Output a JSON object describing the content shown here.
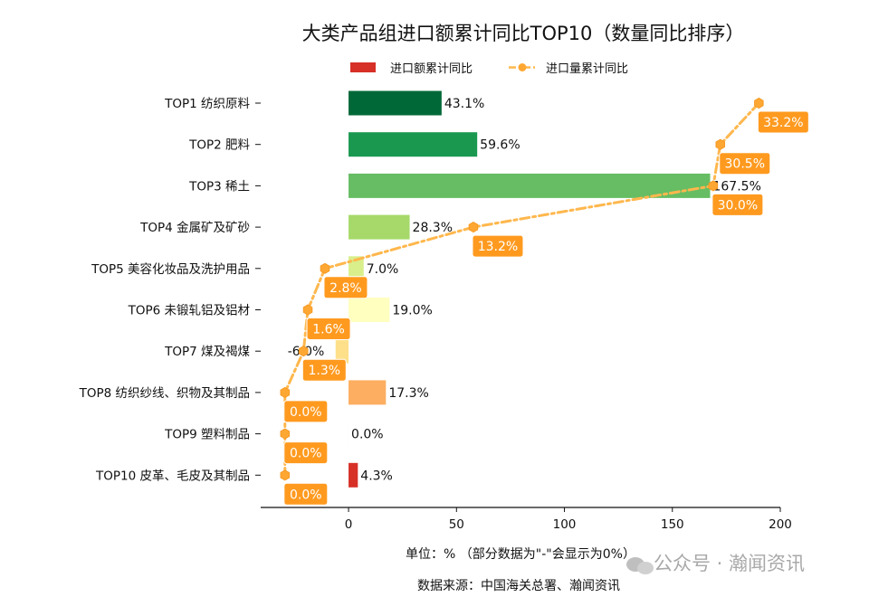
{
  "chart_data": {
    "type": "bar",
    "title": "大类产品组进口额累计同比TOP10（数量同比排序）",
    "categories": [
      "TOP1 纺织原料",
      "TOP2 肥料",
      "TOP3 稀土",
      "TOP4 金属矿及矿砂",
      "TOP5 美容化妆品及洗护用品",
      "TOP6 未锻轧铝及铝材",
      "TOP7 煤及褐煤",
      "TOP8 纺织纱线、织物及其制品",
      "TOP9 塑料制品",
      "TOP10 皮革、毛皮及其制品"
    ],
    "series": [
      {
        "name": "进口额累计同比",
        "type": "bar",
        "values": [
          43.1,
          59.6,
          167.5,
          28.3,
          7.0,
          19.0,
          -6.0,
          17.3,
          0.0,
          4.3
        ],
        "labels": [
          "43.1%",
          "59.6%",
          "167.5%",
          "28.3%",
          "7.0%",
          "19.0%",
          "-6.0%",
          "17.3%",
          "0.0%",
          "4.3%"
        ],
        "colors": [
          "#006837",
          "#1a9850",
          "#66bd63",
          "#a6d96a",
          "#d9ef8b",
          "#ffffbf",
          "#fee08b",
          "#fdae61",
          "#f46d43",
          "#d73027"
        ]
      },
      {
        "name": "进口量累计同比",
        "type": "line",
        "values": [
          33.2,
          30.5,
          30.0,
          13.2,
          2.8,
          1.6,
          1.3,
          0.0,
          0.0,
          0.0
        ],
        "labels": [
          "33.2%",
          "30.5%",
          "30.0%",
          "13.2%",
          "2.8%",
          "1.6%",
          "1.3%",
          "0.0%",
          "0.0%",
          "0.0%"
        ],
        "color": "#ffb74d",
        "label_bg": "#ff9a1f"
      }
    ],
    "xlim": [
      -40.7,
      200
    ],
    "xticks": [
      "0",
      "50",
      "100",
      "150",
      "200"
    ],
    "xtick_values": [
      0,
      50,
      100,
      150,
      200
    ],
    "secondary_xlim": [
      -1.7,
      34.7
    ],
    "xlabel": "单位：%  （部分数据为\"-\"会显示为0%）",
    "legend_position": "top-center",
    "grid": false
  },
  "footer": {
    "source": "数据来源：中国海关总署、瀚闻资讯"
  },
  "watermark": {
    "text": "公众号 · 瀚闻资讯"
  }
}
